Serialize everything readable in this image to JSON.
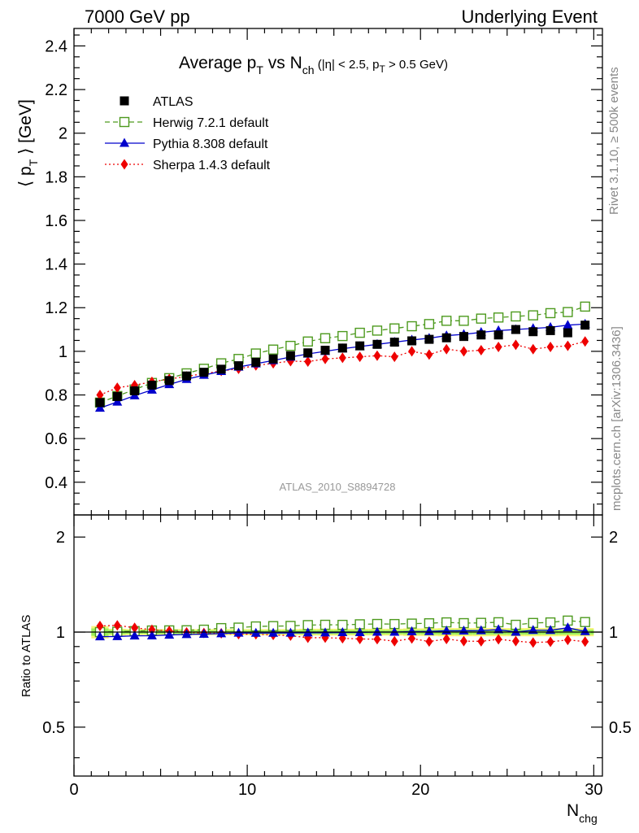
{
  "header": {
    "left": "7000 GeV pp",
    "right": "Underlying Event"
  },
  "title": {
    "t1": "Average p",
    "t2": "T",
    "t3": " vs N",
    "t4": "ch",
    "t5": " (|η| < 2.5, p",
    "t6": "T",
    "t7": " > 0.5 GeV)"
  },
  "side": {
    "rivet": "Rivet 3.1.10, ≥ 500k events",
    "mcplots": "mcplots.cern.ch [arXiv:1306.3436]"
  },
  "analysis_label": "ATLAS_2010_S8894728",
  "axes": {
    "ylabel_main": {
      "a": "⟨ p",
      "b": "T",
      "c": " ⟩ [GeV]"
    },
    "ylabel_ratio": "Ratio to ATLAS",
    "xlabel": {
      "a": "N",
      "b": "chg"
    }
  },
  "legend": [
    {
      "label": "ATLAS",
      "color": "#000000",
      "marker": "filled-square",
      "line": "none"
    },
    {
      "label": "Herwig 7.2.1 default",
      "color": "#4d9a1e",
      "marker": "open-square",
      "line": "dashed"
    },
    {
      "label": "Pythia 8.308 default",
      "color": "#0000cc",
      "marker": "filled-triangle",
      "line": "solid"
    },
    {
      "label": "Sherpa 1.4.3 default",
      "color": "#ee0000",
      "marker": "filled-diamond",
      "line": "dotted"
    }
  ],
  "chart_data": {
    "type": "line",
    "title": "Average pT vs Nch (|η| < 2.5, pT > 0.5 GeV)",
    "xlabel": "Nchg",
    "ylabel": "⟨ pT ⟩ [GeV]",
    "xlim": [
      0,
      30.5
    ],
    "ylim": [
      0.25,
      2.48
    ],
    "xticks": [
      0,
      10,
      20,
      30
    ],
    "yticks": [
      0.4,
      0.6,
      0.8,
      1,
      1.2,
      1.4,
      1.6,
      1.8,
      2,
      2.2,
      2.4
    ],
    "x": [
      1.5,
      2.5,
      3.5,
      4.5,
      5.5,
      6.5,
      7.5,
      8.5,
      9.5,
      10.5,
      11.5,
      12.5,
      13.5,
      14.5,
      15.5,
      16.5,
      17.5,
      18.5,
      19.5,
      20.5,
      21.5,
      22.5,
      23.5,
      24.5,
      25.5,
      26.5,
      27.5,
      28.5,
      29.5
    ],
    "series": [
      {
        "name": "ATLAS",
        "values": [
          0.765,
          0.793,
          0.819,
          0.845,
          0.866,
          0.887,
          0.904,
          0.918,
          0.934,
          0.95,
          0.965,
          0.98,
          0.993,
          1.005,
          1.015,
          1.025,
          1.032,
          1.042,
          1.048,
          1.055,
          1.062,
          1.068,
          1.075,
          1.075,
          1.1,
          1.09,
          1.095,
          1.085,
          1.12
        ]
      },
      {
        "name": "Herwig 7.2.1 default",
        "values": [
          0.765,
          0.795,
          0.825,
          0.855,
          0.877,
          0.899,
          0.92,
          0.945,
          0.965,
          0.99,
          1.008,
          1.025,
          1.045,
          1.06,
          1.07,
          1.085,
          1.095,
          1.105,
          1.115,
          1.125,
          1.14,
          1.14,
          1.15,
          1.155,
          1.16,
          1.165,
          1.175,
          1.18,
          1.205
        ]
      },
      {
        "name": "Pythia 8.308 default",
        "values": [
          0.74,
          0.768,
          0.797,
          0.823,
          0.848,
          0.872,
          0.891,
          0.908,
          0.928,
          0.943,
          0.958,
          0.974,
          0.988,
          1.0,
          1.012,
          1.022,
          1.032,
          1.042,
          1.052,
          1.06,
          1.072,
          1.078,
          1.087,
          1.095,
          1.1,
          1.105,
          1.11,
          1.12,
          1.125
        ]
      },
      {
        "name": "Sherpa 1.4.3 default",
        "values": [
          0.8,
          0.833,
          0.845,
          0.86,
          0.873,
          0.885,
          0.898,
          0.91,
          0.92,
          0.935,
          0.945,
          0.955,
          0.953,
          0.965,
          0.97,
          0.975,
          0.98,
          0.975,
          1.0,
          0.985,
          1.01,
          1.0,
          1.005,
          1.02,
          1.03,
          1.01,
          1.02,
          1.025,
          1.045
        ]
      }
    ],
    "ratio": {
      "ylabel": "Ratio to ATLAS",
      "ylim": [
        0.35,
        2.35
      ],
      "yticks": [
        0.5,
        1,
        2
      ],
      "uncertainty_band": {
        "color_inner": "#9cf05a",
        "color_outer": "#f5f57a",
        "half_width": [
          0.045,
          0.025,
          0.022,
          0.022,
          0.022,
          0.022,
          0.022,
          0.022,
          0.022,
          0.022,
          0.022,
          0.022,
          0.025,
          0.025,
          0.025,
          0.025,
          0.025,
          0.025,
          0.028,
          0.028,
          0.03,
          0.03,
          0.03,
          0.03,
          0.03,
          0.03,
          0.03,
          0.03,
          0.03
        ]
      }
    }
  }
}
